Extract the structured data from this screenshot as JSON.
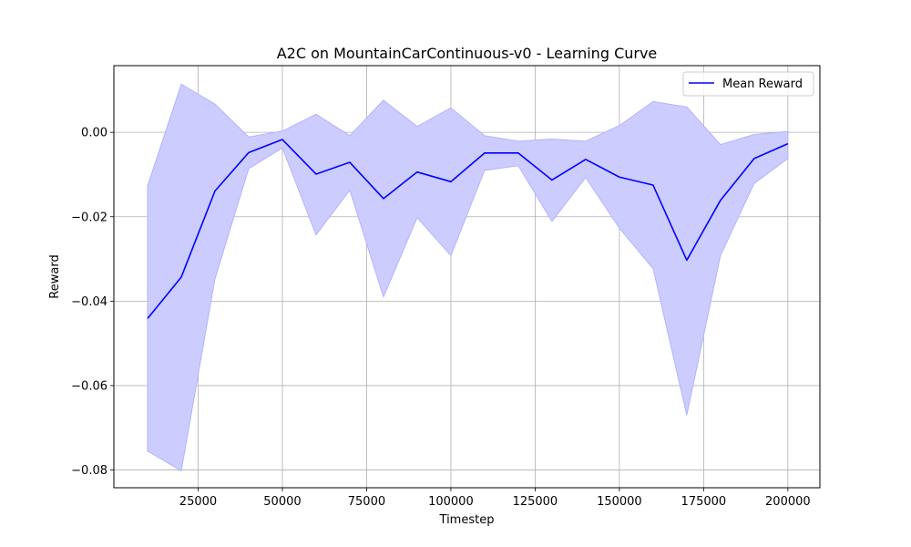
{
  "chart_data": {
    "type": "line",
    "title": "A2C on MountainCarContinuous-v0 - Learning Curve",
    "xlabel": "Timestep",
    "ylabel": "Reward",
    "xlim": [
      0,
      209500
    ],
    "ylim": [
      -0.0842,
      0.0158
    ],
    "grid": true,
    "legend_position": "top-right",
    "x_ticks": [
      25000,
      50000,
      75000,
      100000,
      125000,
      150000,
      175000,
      200000
    ],
    "y_ticks": [
      0.0,
      -0.02,
      -0.04,
      -0.06,
      -0.08
    ],
    "x_tick_labels": [
      "25000",
      "50000",
      "75000",
      "100000",
      "125000",
      "150000",
      "175000",
      "200000"
    ],
    "y_tick_labels": [
      "0.00",
      "−0.02",
      "−0.04",
      "−0.06",
      "−0.08"
    ],
    "x": [
      10000,
      20000,
      30000,
      40000,
      50000,
      60000,
      70000,
      80000,
      90000,
      100000,
      110000,
      120000,
      130000,
      140000,
      150000,
      160000,
      170000,
      180000,
      190000,
      200000
    ],
    "series": [
      {
        "name": "Mean Reward",
        "color": "#0000ff",
        "values": [
          -0.0441,
          -0.0343,
          -0.0139,
          -0.0048,
          -0.0017,
          -0.0099,
          -0.0071,
          -0.0157,
          -0.0094,
          -0.0117,
          -0.0049,
          -0.0049,
          -0.0113,
          -0.0064,
          -0.0106,
          -0.0125,
          -0.0303,
          -0.0161,
          -0.0062,
          -0.0027
        ],
        "lower": [
          -0.0755,
          -0.0802,
          -0.0347,
          -0.0086,
          -0.0037,
          -0.0243,
          -0.0137,
          -0.039,
          -0.0202,
          -0.0292,
          -0.009,
          -0.0079,
          -0.0211,
          -0.0107,
          -0.0227,
          -0.0323,
          -0.067,
          -0.0292,
          -0.0121,
          -0.0062
        ],
        "upper": [
          -0.0127,
          0.0114,
          0.0067,
          -0.0011,
          0.0003,
          0.0043,
          -0.0008,
          0.0076,
          0.0014,
          0.0058,
          -0.0008,
          -0.0021,
          -0.0016,
          -0.0021,
          0.0016,
          0.0073,
          0.006,
          -0.0029,
          -0.0005,
          0.0002
        ],
        "band_color": "#ccccff",
        "band_edge_color": "#b3b3ff"
      }
    ]
  }
}
